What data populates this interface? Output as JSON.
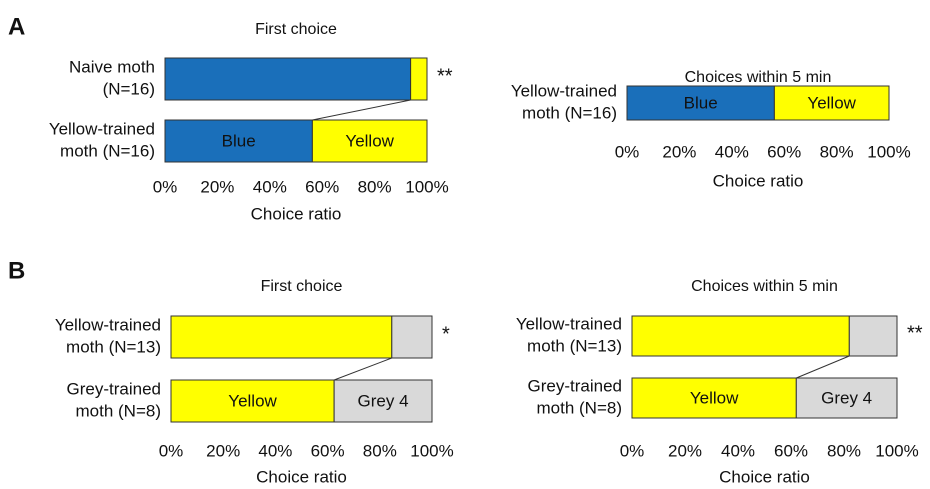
{
  "panel_labels": [
    "A",
    "B"
  ],
  "chart_data": [
    {
      "type": "bar",
      "orientation": "horizontal",
      "stacked": true,
      "title": "First choice",
      "categories": [
        [
          "Naive moth",
          "(N=16)"
        ],
        [
          "Yellow-trained",
          "moth (N=16)"
        ]
      ],
      "series": [
        {
          "name": "Blue",
          "color": "#1a6fba",
          "values": [
            93.75,
            56.25
          ]
        },
        {
          "name": "Yellow",
          "color": "#ffff00",
          "values": [
            6.25,
            43.75
          ]
        }
      ],
      "annotations": [
        "**",
        null
      ],
      "xlim": [
        0,
        100
      ],
      "xticks": [
        {
          "value": 0,
          "label": "0%"
        },
        {
          "value": 20,
          "label": "20%"
        },
        {
          "value": 40,
          "label": "40%"
        },
        {
          "value": 60,
          "label": "60%"
        },
        {
          "value": 80,
          "label": "80%"
        },
        {
          "value": 100,
          "label": "100%"
        }
      ],
      "xlabel": "Choice ratio"
    },
    {
      "type": "bar",
      "orientation": "horizontal",
      "stacked": true,
      "title": "Choices within 5 min",
      "categories": [
        [
          "Yellow-trained",
          "moth  (N=16)"
        ]
      ],
      "series": [
        {
          "name": "Blue",
          "color": "#1a6fba",
          "values": [
            56.25
          ]
        },
        {
          "name": "Yellow",
          "color": "#ffff00",
          "values": [
            43.75
          ]
        }
      ],
      "annotations": [
        null
      ],
      "xlim": [
        0,
        100
      ],
      "xticks": [
        {
          "value": 0,
          "label": "0%"
        },
        {
          "value": 20,
          "label": "20%"
        },
        {
          "value": 40,
          "label": "40%"
        },
        {
          "value": 60,
          "label": "60%"
        },
        {
          "value": 80,
          "label": "80%"
        },
        {
          "value": 100,
          "label": "100%"
        }
      ],
      "xlabel": "Choice ratio"
    },
    {
      "type": "bar",
      "orientation": "horizontal",
      "stacked": true,
      "title": "First choice",
      "categories": [
        [
          "Yellow-trained",
          "moth (N=13)"
        ],
        [
          "Grey-trained",
          "moth (N=8)"
        ]
      ],
      "series": [
        {
          "name": "Yellow",
          "color": "#ffff00",
          "values": [
            84.6,
            62.5
          ]
        },
        {
          "name": "Grey 4",
          "color": "#d9d9d9",
          "values": [
            15.4,
            37.5
          ]
        }
      ],
      "annotations": [
        "*",
        null
      ],
      "xlim": [
        0,
        100
      ],
      "xticks": [
        {
          "value": 0,
          "label": "0%"
        },
        {
          "value": 20,
          "label": "20%"
        },
        {
          "value": 40,
          "label": "40%"
        },
        {
          "value": 60,
          "label": "60%"
        },
        {
          "value": 80,
          "label": "80%"
        },
        {
          "value": 100,
          "label": "100%"
        }
      ],
      "xlabel": "Choice ratio"
    },
    {
      "type": "bar",
      "orientation": "horizontal",
      "stacked": true,
      "title": "Choices within 5 min",
      "categories": [
        [
          "Yellow-trained",
          "moth (N=13)"
        ],
        [
          "Grey-trained",
          "moth (N=8)"
        ]
      ],
      "series": [
        {
          "name": "Yellow",
          "color": "#ffff00",
          "values": [
            82,
            62
          ]
        },
        {
          "name": "Grey 4",
          "color": "#d9d9d9",
          "values": [
            18,
            38
          ]
        }
      ],
      "annotations": [
        "**",
        null
      ],
      "xlim": [
        0,
        100
      ],
      "xticks": [
        {
          "value": 0,
          "label": "0%"
        },
        {
          "value": 20,
          "label": "20%"
        },
        {
          "value": 40,
          "label": "40%"
        },
        {
          "value": 60,
          "label": "60%"
        },
        {
          "value": 80,
          "label": "80%"
        },
        {
          "value": 100,
          "label": "100%"
        }
      ],
      "xlabel": "Choice ratio"
    }
  ]
}
